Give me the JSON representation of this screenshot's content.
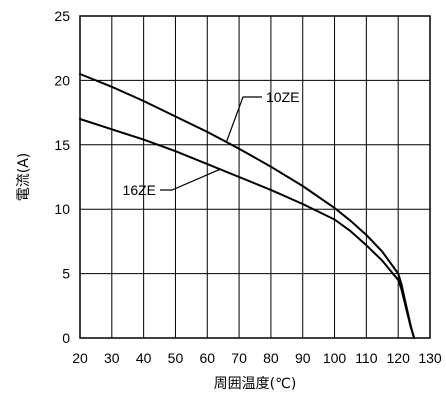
{
  "chart_data": {
    "type": "line",
    "title": "",
    "xlabel": "周囲温度(℃)",
    "ylabel": "電流(A)",
    "xlim": [
      20,
      130
    ],
    "ylim": [
      0,
      25
    ],
    "x_ticks": [
      20,
      30,
      40,
      50,
      60,
      70,
      80,
      90,
      100,
      110,
      120,
      130
    ],
    "y_ticks": [
      0,
      5,
      10,
      15,
      20,
      25
    ],
    "grid": true,
    "series": [
      {
        "name": "10ZE",
        "x": [
          20,
          30,
          40,
          50,
          60,
          70,
          80,
          90,
          100,
          105,
          110,
          115,
          120,
          121,
          122,
          123,
          124,
          125
        ],
        "y": [
          20.5,
          19.5,
          18.4,
          17.2,
          16.0,
          14.7,
          13.3,
          11.8,
          10.1,
          9.1,
          8.0,
          6.7,
          5.0,
          4.2,
          3.1,
          2.0,
          0.9,
          0
        ]
      },
      {
        "name": "16ZE",
        "x": [
          20,
          30,
          40,
          50,
          60,
          70,
          80,
          90,
          100,
          105,
          110,
          115,
          120,
          121,
          122,
          123,
          124,
          125
        ],
        "y": [
          17.0,
          16.2,
          15.4,
          14.5,
          13.5,
          12.5,
          11.5,
          10.4,
          9.2,
          8.3,
          7.2,
          6.0,
          4.5,
          3.8,
          2.8,
          1.8,
          0.8,
          0
        ]
      }
    ]
  }
}
